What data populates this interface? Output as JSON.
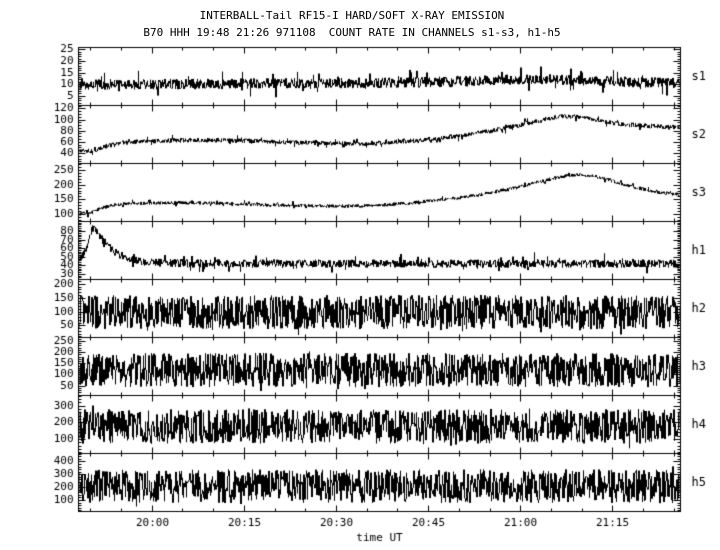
{
  "page": {
    "background": "#ffffff",
    "ink": "#000000"
  },
  "header": {
    "title": "INTERBALL-Tail RF15-I HARD/SOFT X-RAY EMISSION",
    "subtitle": "B70 HHH 19:48 21:26 971108  COUNT RATE IN CHANNELS s1-s3, h1-h5"
  },
  "chart_data": {
    "type": "line",
    "title": "INTERBALL-Tail RF15-I HARD/SOFT X-RAY EMISSION",
    "subtitle": "B70 HHH 19:48 21:26 971108  COUNT RATE IN CHANNELS s1-s3, h1-h5",
    "xlabel": "time UT",
    "x_start_label": "19:48",
    "x_end_label": "21:26",
    "x_duration_min": 98,
    "x_start_wall_min": 1188,
    "x_ticks": [
      {
        "label": "20:00",
        "t": 12
      },
      {
        "label": "20:15",
        "t": 27
      },
      {
        "label": "20:30",
        "t": 42
      },
      {
        "label": "20:45",
        "t": 57
      },
      {
        "label": "21:00",
        "t": 72
      },
      {
        "label": "21:15",
        "t": 87
      }
    ],
    "x_minor_step_min": 5,
    "x_major_step_min": 15,
    "grid": false,
    "legend": "channel labels on right side",
    "panels": [
      {
        "channel": "s1",
        "y_ticks": [
          5,
          10,
          15,
          20,
          25
        ],
        "y_minor_step": 1,
        "ylim": [
          1,
          26
        ],
        "mean_path": [
          [
            0,
            10
          ],
          [
            20,
            10.3
          ],
          [
            40,
            10.6
          ],
          [
            55,
            11
          ],
          [
            65,
            11.6
          ],
          [
            72,
            12.2
          ],
          [
            78,
            12.2
          ],
          [
            85,
            11.4
          ],
          [
            92,
            11
          ],
          [
            98,
            10.6
          ]
        ],
        "noise": {
          "amp": 2.3,
          "spike_p": 0.1,
          "spike_amp": 4.5
        }
      },
      {
        "channel": "s2",
        "y_ticks": [
          40,
          60,
          80,
          100,
          120
        ],
        "y_minor_step": 5,
        "ylim": [
          22,
          126
        ],
        "mean_path": [
          [
            0,
            44
          ],
          [
            2.5,
            45
          ],
          [
            4,
            52
          ],
          [
            6,
            58
          ],
          [
            9,
            61
          ],
          [
            14,
            63
          ],
          [
            20,
            64
          ],
          [
            26,
            63
          ],
          [
            32,
            61
          ],
          [
            38,
            59
          ],
          [
            44,
            57.5
          ],
          [
            48,
            58
          ],
          [
            52,
            61
          ],
          [
            56,
            64
          ],
          [
            60,
            69
          ],
          [
            64,
            75
          ],
          [
            68,
            82
          ],
          [
            72,
            91
          ],
          [
            75,
            99
          ],
          [
            77,
            104
          ],
          [
            79,
            107
          ],
          [
            81,
            106
          ],
          [
            83,
            103
          ],
          [
            85,
            99
          ],
          [
            87,
            95
          ],
          [
            89,
            92
          ],
          [
            92,
            90
          ],
          [
            95,
            88
          ],
          [
            98,
            87
          ]
        ],
        "noise": {
          "amp": 4.2,
          "spike_p": 0.1,
          "spike_amp": 7
        }
      },
      {
        "channel": "s3",
        "y_ticks": [
          100,
          150,
          200,
          250
        ],
        "y_minor_step": 10,
        "ylim": [
          78,
          272
        ],
        "mean_path": [
          [
            0,
            103
          ],
          [
            1.5,
            106
          ],
          [
            3,
            118
          ],
          [
            5,
            132
          ],
          [
            8,
            138
          ],
          [
            12,
            140
          ],
          [
            16,
            141
          ],
          [
            20,
            140
          ],
          [
            25,
            137
          ],
          [
            30,
            134
          ],
          [
            36,
            131
          ],
          [
            42,
            129
          ],
          [
            46,
            130
          ],
          [
            50,
            134
          ],
          [
            54,
            140
          ],
          [
            58,
            148
          ],
          [
            62,
            158
          ],
          [
            66,
            170
          ],
          [
            70,
            186
          ],
          [
            73,
            200
          ],
          [
            76,
            215
          ],
          [
            78,
            226
          ],
          [
            80,
            232
          ],
          [
            82,
            234
          ],
          [
            84,
            229
          ],
          [
            86,
            220
          ],
          [
            88,
            208
          ],
          [
            90,
            196
          ],
          [
            92,
            186
          ],
          [
            94,
            178
          ],
          [
            96,
            172
          ],
          [
            98,
            168
          ]
        ],
        "noise": {
          "amp": 6,
          "spike_p": 0.1,
          "spike_amp": 9
        }
      },
      {
        "channel": "h1",
        "y_ticks": [
          30,
          40,
          50,
          60,
          70,
          80
        ],
        "y_minor_step": 2,
        "ylim": [
          24,
          92
        ],
        "mean_path": [
          [
            0,
            50
          ],
          [
            1,
            56
          ],
          [
            1.8,
            80
          ],
          [
            2.2,
            86
          ],
          [
            2.8,
            80
          ],
          [
            4,
            68
          ],
          [
            5,
            60
          ],
          [
            6.5,
            53
          ],
          [
            8,
            48
          ],
          [
            10,
            45
          ],
          [
            13,
            43.5
          ],
          [
            20,
            43
          ],
          [
            60,
            42.5
          ],
          [
            98,
            42.5
          ]
        ],
        "noise": {
          "amp": 4.8,
          "spike_p": 0.1,
          "spike_amp": 9
        }
      },
      {
        "channel": "h2",
        "y_ticks": [
          50,
          100,
          150,
          200
        ],
        "y_minor_step": 10,
        "ylim": [
          8,
          218
        ],
        "mean_path": [
          [
            0,
            100
          ],
          [
            98,
            100
          ]
        ],
        "noise": {
          "amp": 62,
          "spike_p": 0.05,
          "spike_amp": 26
        }
      },
      {
        "channel": "h3",
        "y_ticks": [
          50,
          100,
          150,
          200,
          250
        ],
        "y_minor_step": 10,
        "ylim": [
          8,
          268
        ],
        "mean_path": [
          [
            0,
            122
          ],
          [
            98,
            122
          ]
        ],
        "noise": {
          "amp": 77,
          "spike_p": 0.05,
          "spike_amp": 32
        }
      },
      {
        "channel": "h4",
        "y_ticks": [
          100,
          200,
          300
        ],
        "y_minor_step": 20,
        "ylim": [
          15,
          365
        ],
        "mean_path": [
          [
            0,
            178
          ],
          [
            98,
            178
          ]
        ],
        "noise": {
          "amp": 104,
          "spike_p": 0.05,
          "spike_amp": 40
        }
      },
      {
        "channel": "h5",
        "y_ticks": [
          100,
          200,
          300,
          400
        ],
        "y_minor_step": 20,
        "ylim": [
          15,
          465
        ],
        "mean_path": [
          [
            0,
            212
          ],
          [
            98,
            212
          ]
        ],
        "noise": {
          "amp": 131,
          "spike_p": 0.05,
          "spike_amp": 48
        }
      }
    ]
  }
}
